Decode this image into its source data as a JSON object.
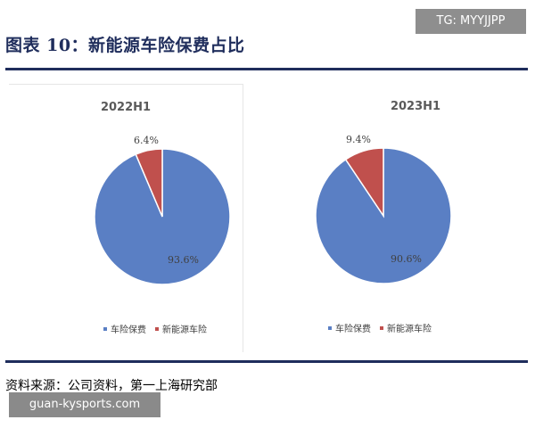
{
  "header": {
    "title": "图表 10：新能源车险保费占比"
  },
  "watermarks": {
    "top": "TG: MYYJJPP",
    "bottom": "guan-kysports.com"
  },
  "source": "资料来源：公司资料，第一上海研究部",
  "colors": {
    "blue": "#5a7fc4",
    "red": "#c0504d",
    "dark_navy": "#1f2d5c"
  },
  "chart_data": [
    {
      "type": "pie",
      "title": "2022H1",
      "categories": [
        "车险保费",
        "新能源车险"
      ],
      "values": [
        93.6,
        6.4
      ],
      "labels": [
        "93.6%",
        "6.4%"
      ],
      "colors": [
        "#5a7fc4",
        "#c0504d"
      ],
      "legend": "bottom"
    },
    {
      "type": "pie",
      "title": "2023H1",
      "categories": [
        "车险保费",
        "新能源车险"
      ],
      "values": [
        90.6,
        9.4
      ],
      "labels": [
        "90.6%",
        "9.4%"
      ],
      "colors": [
        "#5a7fc4",
        "#c0504d"
      ],
      "legend": "bottom"
    }
  ]
}
